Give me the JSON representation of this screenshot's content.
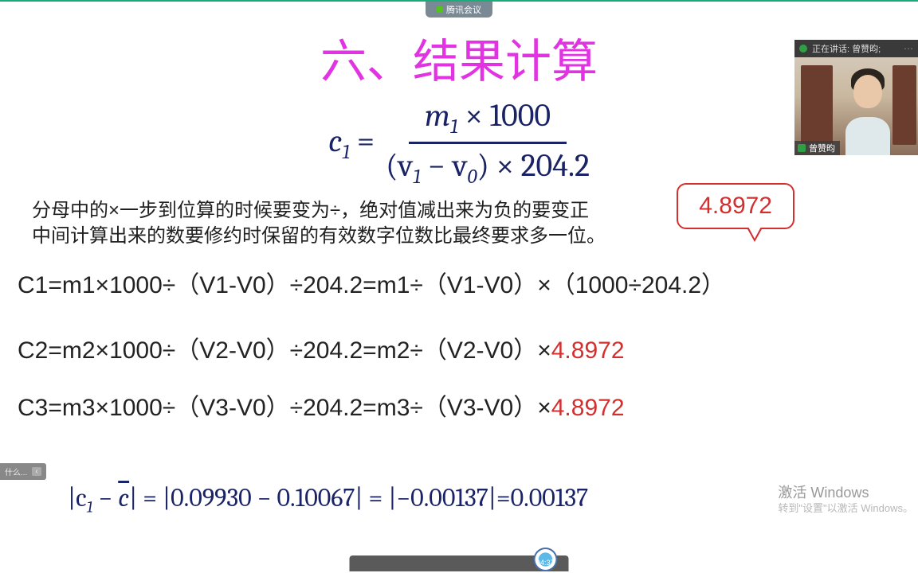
{
  "meeting_app": "腾讯会议",
  "slide": {
    "title": "六、结果计算",
    "formula": {
      "lhs": "c",
      "lhs_sub": "1",
      "num_left": "m",
      "num_sub": "1",
      "num_op": " × 1000",
      "den_l": "(v",
      "den_s1": "1",
      "den_mid": " − v",
      "den_s2": "0",
      "den_r": ") × 204.2"
    },
    "note1": "分母中的×一步到位算的时候要变为÷，绝对值减出来为负的要变正",
    "note2": "中间计算出来的数要修约时保留的有效数字位数比最终要求多一位。",
    "callout_value": "4.8972",
    "eq1_a": "C1=m1×1000÷（V1-V0）÷204.2=m1÷（V1-V0）×（1000÷204.2）",
    "eq2_a": "C2=m2×1000÷（V2-V0）÷204.2=m2÷（V2-V0）×",
    "eq2_b": "4.8972",
    "eq3_a": "C3=m3×1000÷（V3-V0）÷204.2=m3÷（V3-V0）×",
    "eq3_b": "4.8972",
    "final_prefix": "|c",
    "final_s1": "1",
    "final_mid": " − ",
    "final_cbar": "c",
    "final_rest": "| = |0.09930 − 0.10067| = |−0.00137|=0.00137"
  },
  "video": {
    "speaking_prefix": "正在讲话:",
    "speaker": "曾赞昀;",
    "label": "曾赞昀"
  },
  "watermark": {
    "line1": "激活 Windows",
    "line2": "转到\"设置\"以激活 Windows。"
  },
  "player": {
    "time": "04:37"
  },
  "left_tab": "什么...",
  "colors": {
    "title": "#e233e2",
    "formula": "#1a2366",
    "accent": "#d32f2f",
    "top_border": "#1aad7a"
  }
}
